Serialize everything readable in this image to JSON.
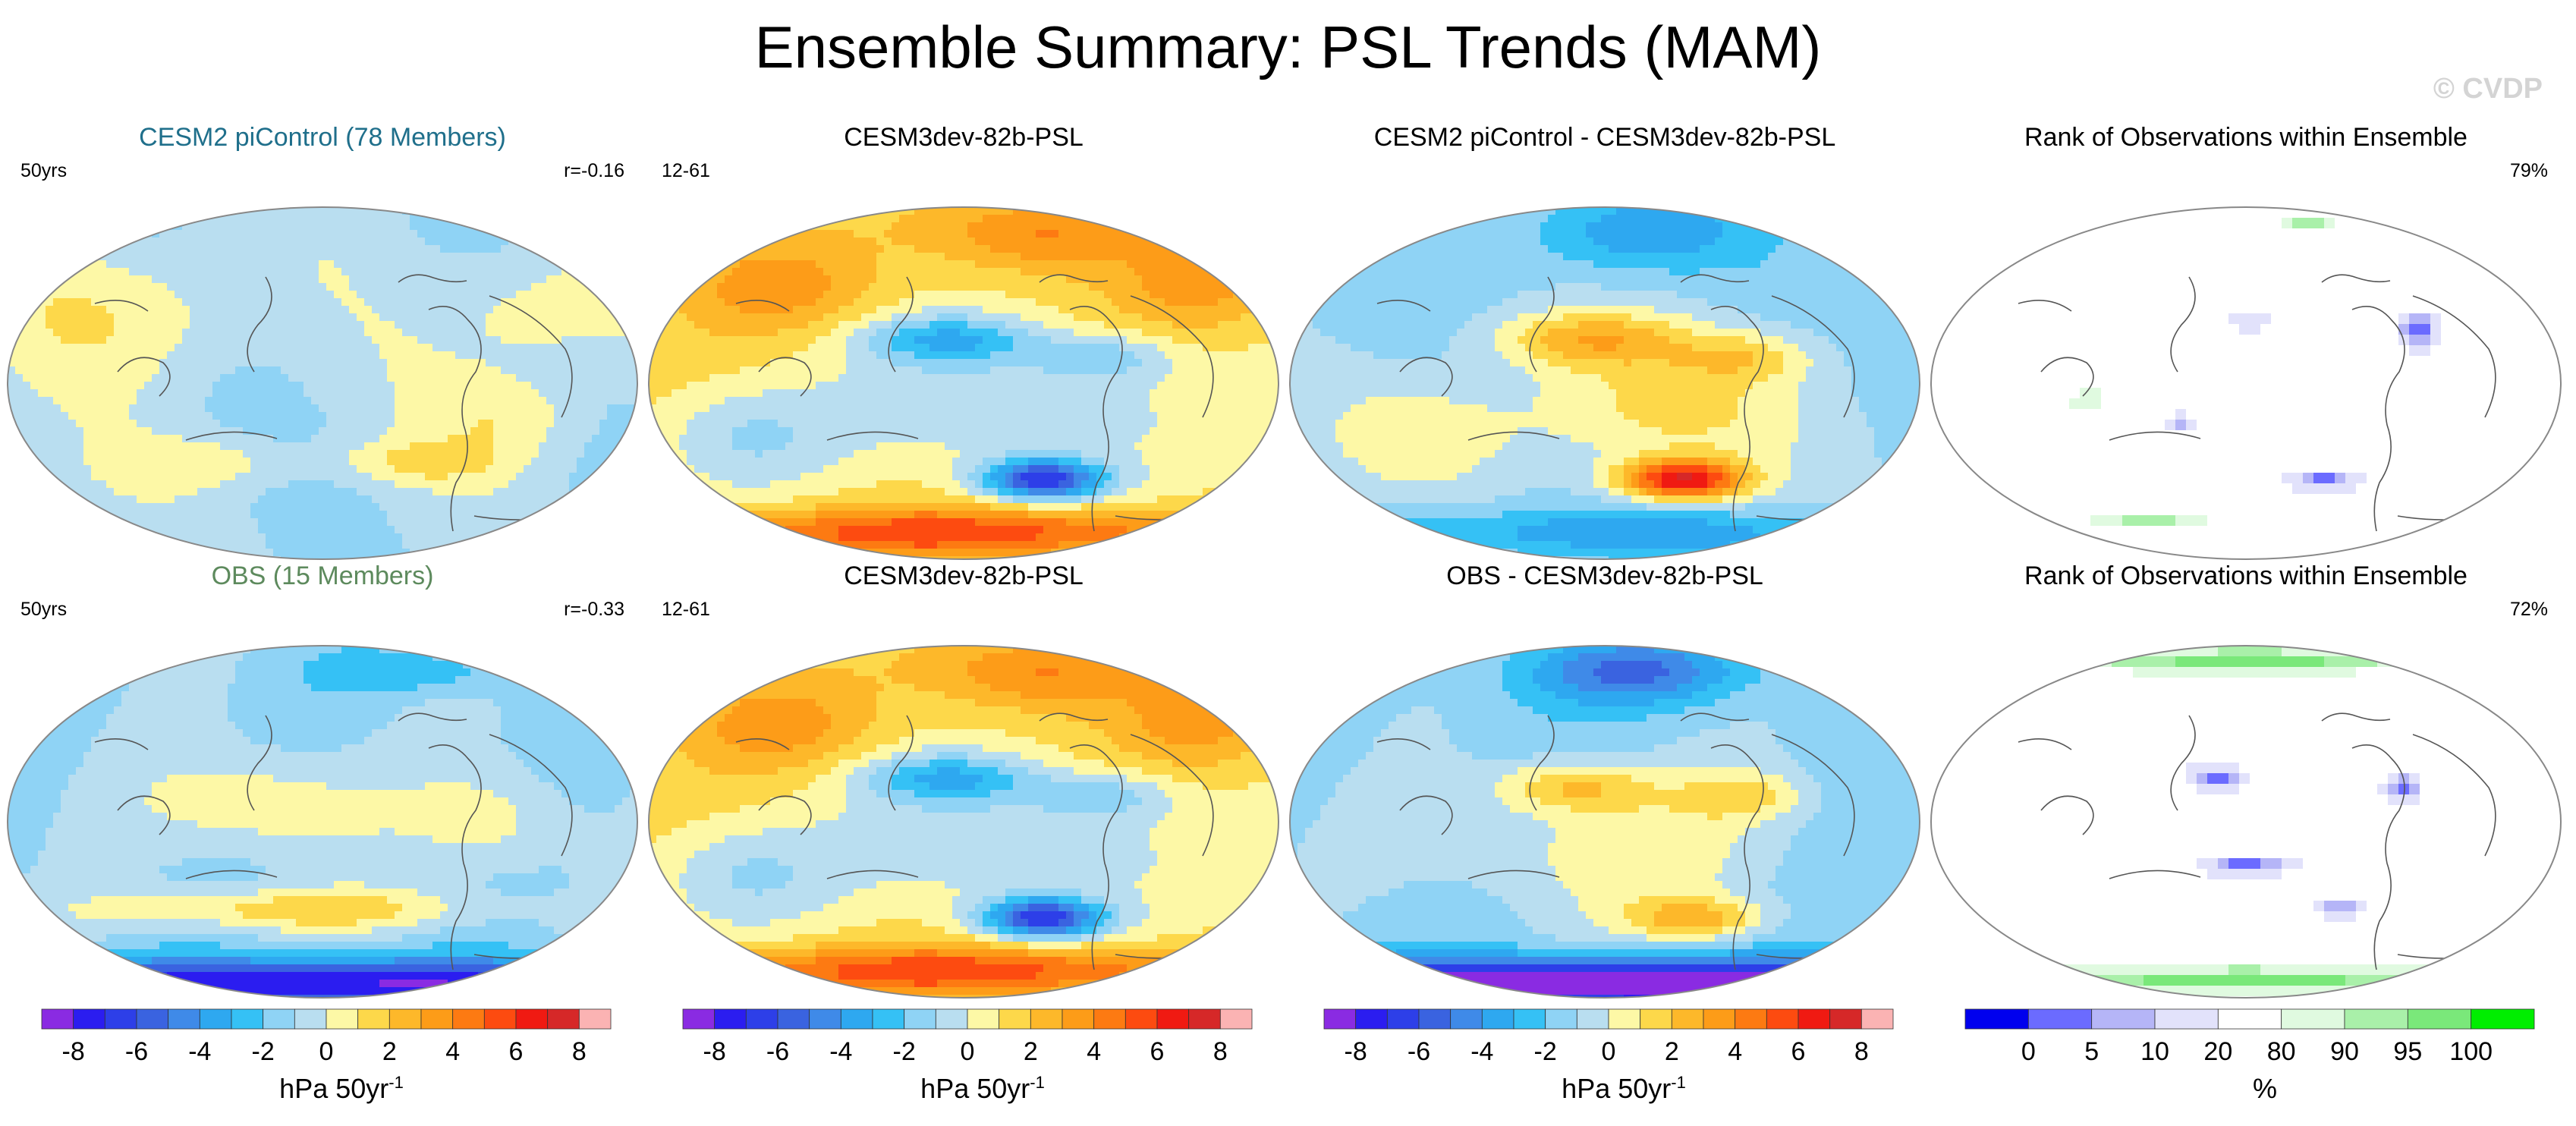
{
  "title": "Ensemble Summary: PSL Trends (MAM)",
  "watermark": "© CVDP",
  "panels": [
    {
      "id": "p1",
      "title": "CESM2 piControl (78 Members)",
      "title_color": "#1f6f8b",
      "left_note": "50yrs",
      "right_note": "r=-0.16",
      "field": "pictl"
    },
    {
      "id": "p2",
      "title": "CESM3dev-82b-PSL",
      "title_color": "#000000",
      "left_note": "12-61",
      "right_note": "",
      "field": "model"
    },
    {
      "id": "p3",
      "title": "CESM2 piControl - CESM3dev-82b-PSL",
      "title_color": "#000000",
      "left_note": "",
      "right_note": "",
      "field": "diff1"
    },
    {
      "id": "p4",
      "title": "Rank of Observations within Ensemble",
      "title_color": "#000000",
      "left_note": "",
      "right_note": "79%",
      "field": "rank1"
    },
    {
      "id": "p5",
      "title": "OBS (15 Members)",
      "title_color": "#5d8a5d",
      "left_note": "50yrs",
      "right_note": "r=-0.33",
      "field": "obs"
    },
    {
      "id": "p6",
      "title": "CESM3dev-82b-PSL",
      "title_color": "#000000",
      "left_note": "12-61",
      "right_note": "",
      "field": "model"
    },
    {
      "id": "p7",
      "title": "OBS - CESM3dev-82b-PSL",
      "title_color": "#000000",
      "left_note": "",
      "right_note": "",
      "field": "diff2"
    },
    {
      "id": "p8",
      "title": "Rank of Observations within Ensemble",
      "title_color": "#000000",
      "left_note": "",
      "right_note": "72%",
      "field": "rank2"
    }
  ],
  "colorbars": [
    {
      "id": "cb1",
      "label": "hPa 50yr",
      "label_sup": "-1",
      "ticks": [
        "-8",
        "-6",
        "-4",
        "-2",
        "0",
        "2",
        "4",
        "6",
        "8"
      ]
    },
    {
      "id": "cb2",
      "label": "hPa 50yr",
      "label_sup": "-1",
      "ticks": [
        "-8",
        "-6",
        "-4",
        "-2",
        "0",
        "2",
        "4",
        "6",
        "8"
      ]
    },
    {
      "id": "cb3",
      "label": "hPa 50yr",
      "label_sup": "-1",
      "ticks": [
        "-8",
        "-6",
        "-4",
        "-2",
        "0",
        "2",
        "4",
        "6",
        "8"
      ]
    },
    {
      "id": "cb4",
      "label": "%",
      "label_sup": "",
      "ticks": [
        "0",
        "5",
        "10",
        "20",
        "80",
        "90",
        "95",
        "100"
      ]
    }
  ],
  "chart_data": {
    "type": "heatmap",
    "title": "Ensemble Summary: PSL Trends (MAM)",
    "units": "hPa 50yr-1",
    "levels": [
      -9,
      -8,
      -7,
      -6,
      -5,
      -4,
      -3,
      -2,
      -1,
      0,
      1,
      2,
      3,
      4,
      5,
      6,
      7,
      8,
      9
    ],
    "psl_colors": [
      "#8a2be2",
      "#2b1df0",
      "#2d3fe8",
      "#3a63e0",
      "#3f8ae8",
      "#2ea8f0",
      "#35c1f5",
      "#8fd3f5",
      "#b9def0",
      "#fdf8a6",
      "#fdd84a",
      "#fdb82a",
      "#fd9c18",
      "#fd7a12",
      "#fd4b10",
      "#f01a12",
      "#d62828",
      "#fbb3b3"
    ],
    "rank_levels": [
      0,
      5,
      10,
      20,
      80,
      90,
      95,
      100
    ],
    "rank_colors": [
      "#0000ee",
      "#6b6bff",
      "#b5b5f7",
      "#e2e2fb",
      "#ffffff",
      "#e0fae0",
      "#a9f0a9",
      "#7ae87a",
      "#00ee00"
    ],
    "panels": [
      {
        "name": "CESM2 piControl (78 Members)",
        "period": "50yrs",
        "pattern_correlation": -0.16
      },
      {
        "name": "CESM3dev-82b-PSL",
        "period": "12-61"
      },
      {
        "name": "CESM2 piControl - CESM3dev-82b-PSL"
      },
      {
        "name": "Rank of Observations within Ensemble",
        "percent_in_range": 79
      },
      {
        "name": "OBS (15 Members)",
        "period": "50yrs",
        "pattern_correlation": -0.33
      },
      {
        "name": "CESM3dev-82b-PSL",
        "period": "12-61"
      },
      {
        "name": "OBS - CESM3dev-82b-PSL"
      },
      {
        "name": "Rank of Observations within Ensemble",
        "percent_in_range": 72
      }
    ]
  }
}
